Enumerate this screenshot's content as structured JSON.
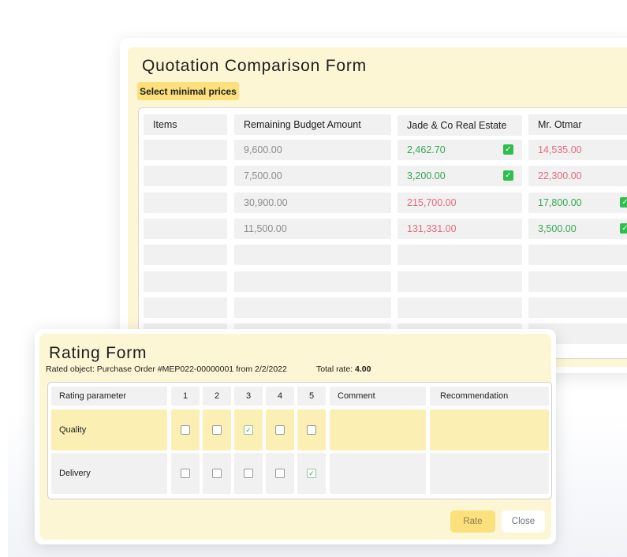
{
  "quotation": {
    "title": "Quotation Comparison Form",
    "select_button": "Select minimal prices",
    "headers": {
      "items": "Items",
      "budget": "Remaining Budget Amount",
      "vendor1": "Jade & Co Real Estate",
      "vendor2": "Mr. Otmar"
    },
    "rows": [
      {
        "budget": "9,600.00",
        "vendor1": "2,462.70",
        "vendor1_status": "green",
        "vendor1_selected": true,
        "vendor2": "14,535.00",
        "vendor2_status": "red",
        "vendor2_selected": false
      },
      {
        "budget": "7,500.00",
        "vendor1": "3,200.00",
        "vendor1_status": "green",
        "vendor1_selected": true,
        "vendor2": "22,300.00",
        "vendor2_status": "red",
        "vendor2_selected": false
      },
      {
        "budget": "30,900.00",
        "vendor1": "215,700.00",
        "vendor1_status": "red",
        "vendor1_selected": false,
        "vendor2": "17,800.00",
        "vendor2_status": "green",
        "vendor2_selected": true
      },
      {
        "budget": "11,500.00",
        "vendor1": "131,331.00",
        "vendor1_status": "red",
        "vendor1_selected": false,
        "vendor2": "3,500.00",
        "vendor2_status": "green",
        "vendor2_selected": true
      }
    ]
  },
  "rating": {
    "title": "Rating Form",
    "rated_object": "Rated object: Purchase Order #MEP022-00000001 from 2/2/2022",
    "total_label": "Total rate: ",
    "total_value": "4.00",
    "headers": {
      "parameter": "Rating parameter",
      "c1": "1",
      "c2": "2",
      "c3": "3",
      "c4": "4",
      "c5": "5",
      "comment": "Comment",
      "recommendation": "Recommendation"
    },
    "rows": [
      {
        "name": "Quality",
        "selected": 3,
        "highlight": true
      },
      {
        "name": "Delivery",
        "selected": 5,
        "highlight": false
      }
    ],
    "rate_button": "Rate",
    "close_button": "Close"
  },
  "colors": {
    "accent_yellow": "#fbe07c",
    "panel_yellow": "#fdf6d5",
    "good": "#33a852",
    "bad": "#e26b7d"
  }
}
